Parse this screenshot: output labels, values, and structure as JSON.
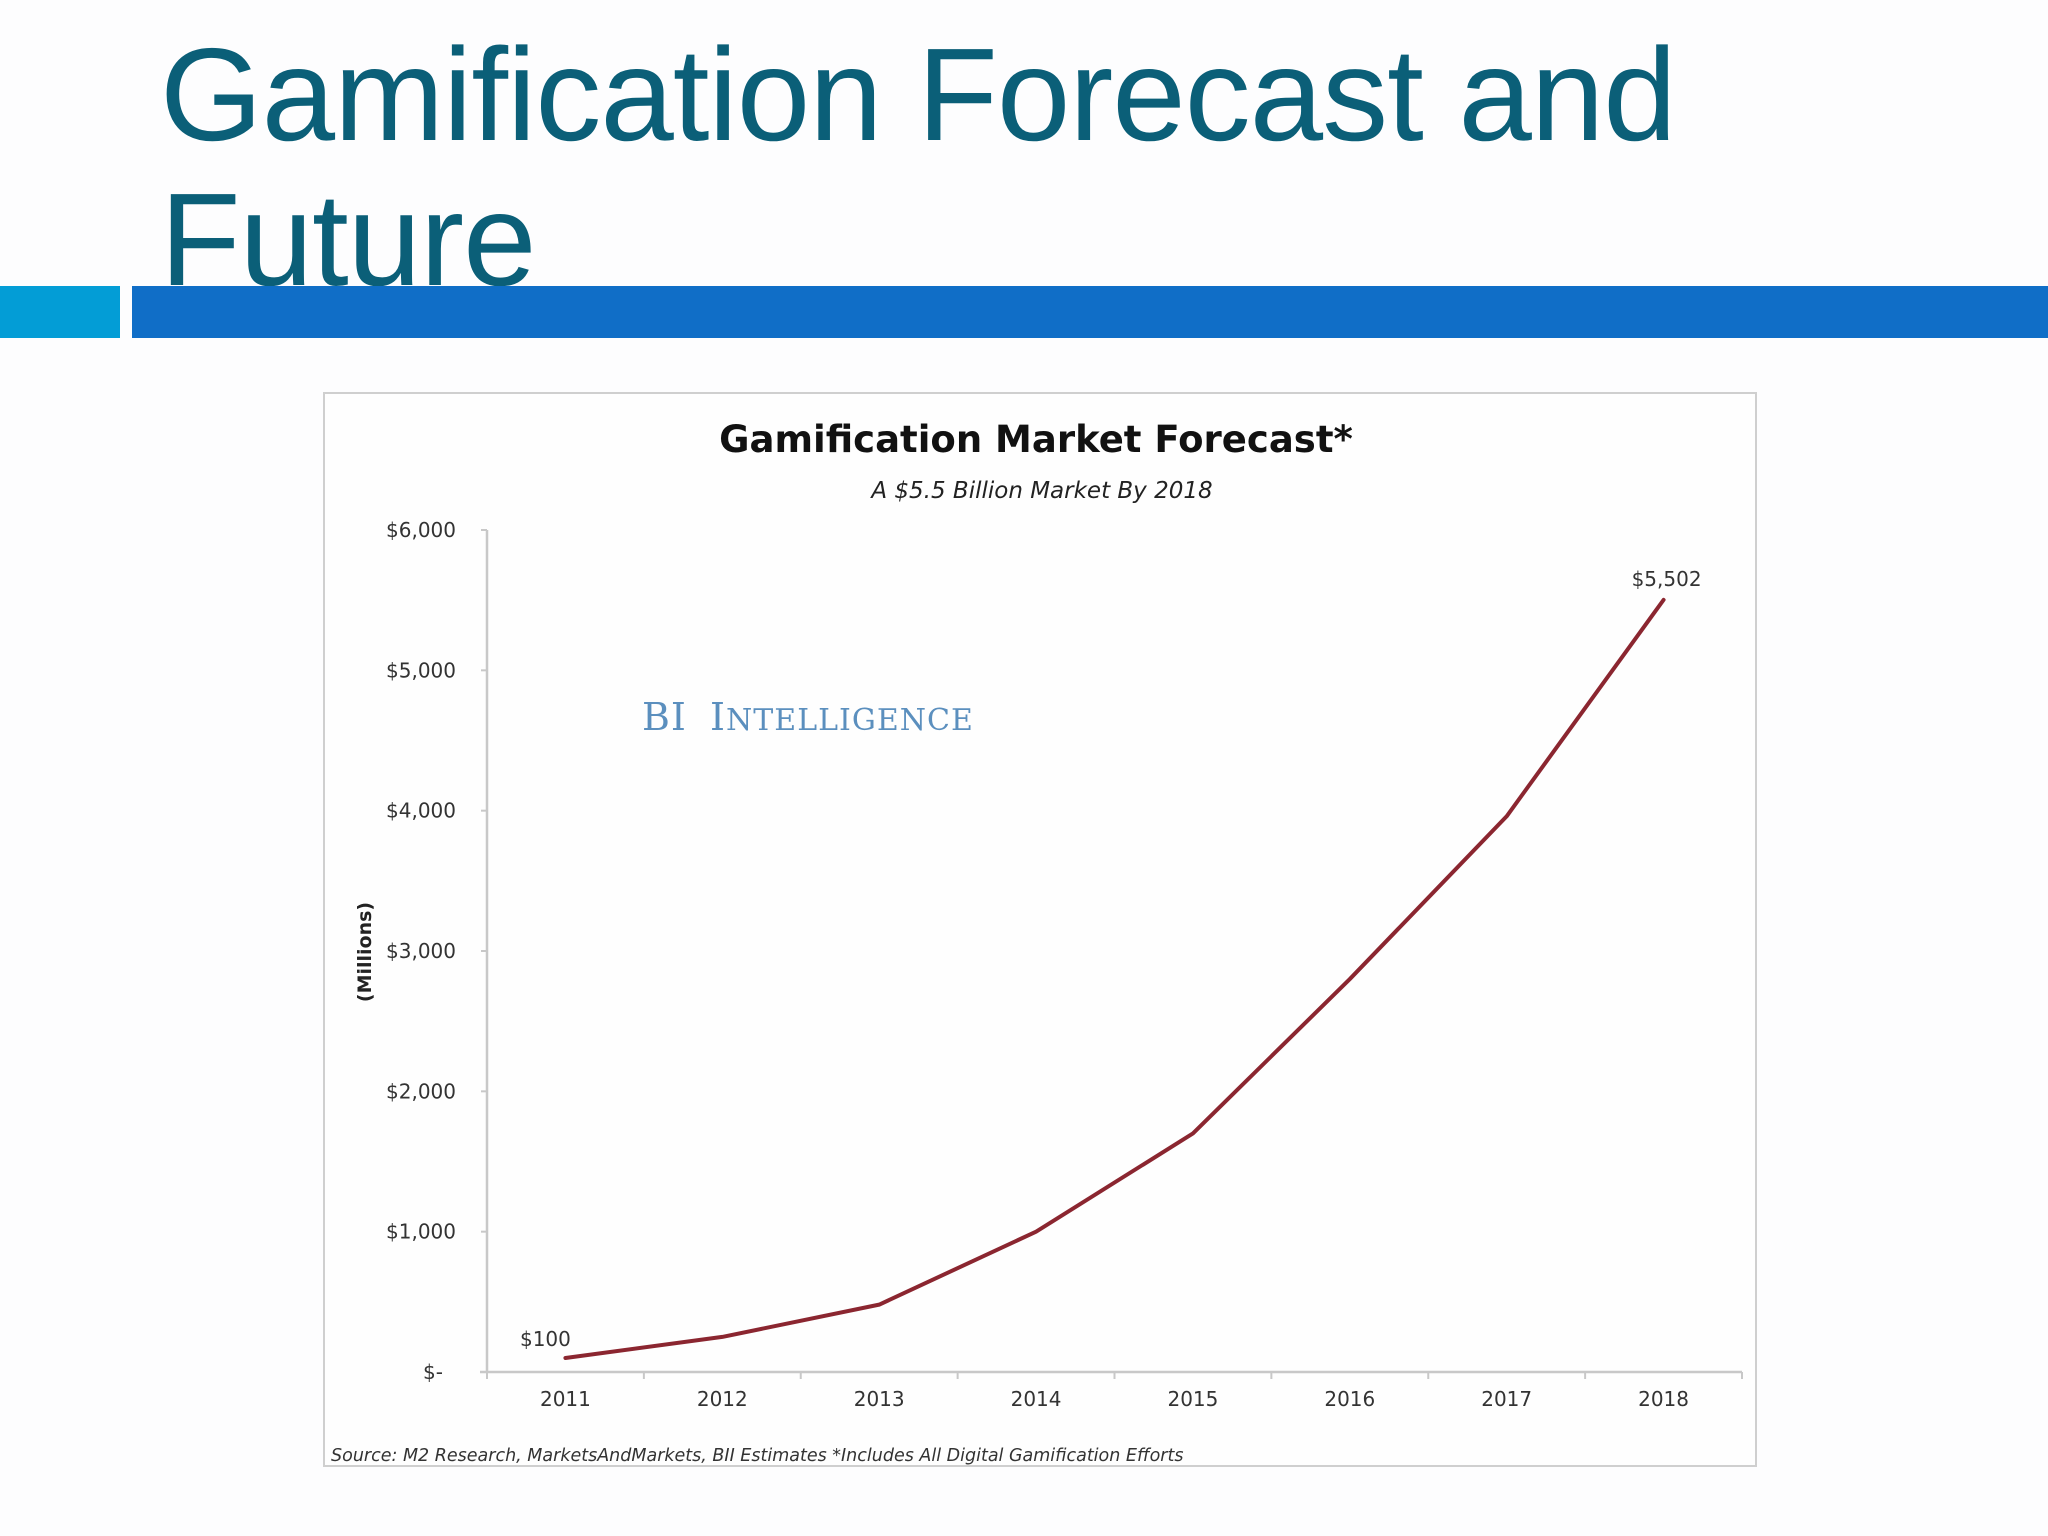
{
  "slide": {
    "title_line1": "Gamification Forecast and",
    "title_line2": "Future",
    "colors": {
      "title": "#0b5f78",
      "accent_block": "#039dd6",
      "title_bar": "#106ec7",
      "series_line": "#8b2630",
      "watermark": "#5b8fbe"
    }
  },
  "chart_data": {
    "type": "line",
    "title": "Gamification Market Forecast*",
    "subtitle": "A $5.5 Billion Market By 2018",
    "xlabel": "",
    "ylabel": "(Millions)",
    "categories": [
      "2011",
      "2012",
      "2013",
      "2014",
      "2015",
      "2016",
      "2017",
      "2018"
    ],
    "series": [
      {
        "name": "Gamification Market",
        "values": [
          100,
          250,
          480,
          1000,
          1700,
          2800,
          3960,
          5502
        ]
      }
    ],
    "ylim": [
      0,
      6000
    ],
    "y_ticks": [
      0,
      1000,
      2000,
      3000,
      4000,
      5000,
      6000
    ],
    "y_tick_labels": [
      "$-",
      "$1,000",
      "$2,000",
      "$3,000",
      "$4,000",
      "$5,000",
      "$6,000"
    ],
    "annotations": [
      {
        "category": "2011",
        "label": "$100"
      },
      {
        "category": "2018",
        "label": "$5,502"
      }
    ],
    "watermark": {
      "first": "BI",
      "second_initial": "I",
      "second_rest": "NTELLIGENCE",
      "full": "BI Intelligence"
    },
    "source": "Source: M2 Research, MarketsAndMarkets, BII Estimates *Includes All Digital Gamification Efforts",
    "grid": false,
    "legend": "none"
  }
}
